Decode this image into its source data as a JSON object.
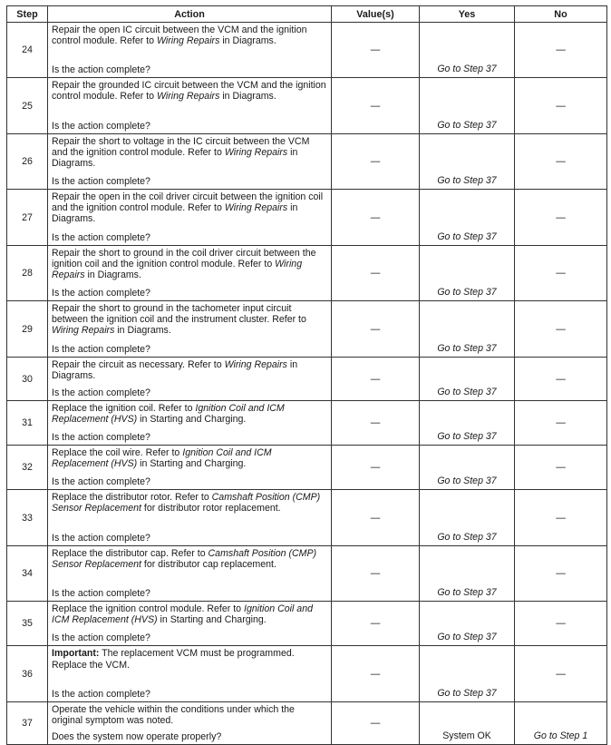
{
  "headers": {
    "step": "Step",
    "action": "Action",
    "values": "Value(s)",
    "yes": "Yes",
    "no": "No"
  },
  "rows": [
    {
      "step": "24",
      "main": [
        [
          {
            "t": "Repair the open IC circuit between the VCM and the ignition control module. Refer to "
          },
          {
            "t": "Wiring Repairs",
            "s": "i"
          },
          {
            "t": " in Diagrams."
          }
        ]
      ],
      "question": "Is the action complete?",
      "value": "—",
      "yes": "Go to Step 37",
      "yes_italic": true,
      "no": "—"
    },
    {
      "step": "25",
      "main": [
        [
          {
            "t": "Repair the grounded IC circuit between the VCM and the ignition control module. Refer to "
          },
          {
            "t": "Wiring Repairs",
            "s": "i"
          },
          {
            "t": " in Diagrams."
          }
        ]
      ],
      "question": "Is the action complete?",
      "value": "—",
      "yes": "Go to Step 37",
      "yes_italic": true,
      "no": "—"
    },
    {
      "step": "26",
      "main": [
        [
          {
            "t": "Repair the short to voltage in the IC circuit between the VCM and the ignition control module. Refer to "
          },
          {
            "t": "Wiring Repairs",
            "s": "i"
          },
          {
            "t": " in Diagrams."
          }
        ]
      ],
      "question": "Is the action complete?",
      "value": "—",
      "yes": "Go to Step 37",
      "yes_italic": true,
      "no": "—"
    },
    {
      "step": "27",
      "main": [
        [
          {
            "t": "Repair the open in the coil driver circuit between the ignition coil and the ignition control module. Refer to "
          },
          {
            "t": "Wiring Repairs",
            "s": "i"
          },
          {
            "t": " in Diagrams."
          }
        ]
      ],
      "question": "Is the action complete?",
      "value": "—",
      "yes": "Go to Step 37",
      "yes_italic": true,
      "no": "—"
    },
    {
      "step": "28",
      "main": [
        [
          {
            "t": "Repair the short to ground in the coil driver circuit between the ignition coil and the ignition control module. Refer to "
          },
          {
            "t": "Wiring Repairs",
            "s": "i"
          },
          {
            "t": " in Diagrams."
          }
        ]
      ],
      "question": "Is the action complete?",
      "value": "—",
      "yes": "Go to Step 37",
      "yes_italic": true,
      "no": "—"
    },
    {
      "step": "29",
      "main": [
        [
          {
            "t": "Repair the short to ground in the tachometer input circuit between the ignition coil and the instrument cluster. Refer to "
          },
          {
            "t": "Wiring Repairs",
            "s": "i"
          },
          {
            "t": " in Diagrams."
          }
        ]
      ],
      "question": "Is the action complete?",
      "value": "—",
      "yes": "Go to Step 37",
      "yes_italic": true,
      "no": "—"
    },
    {
      "step": "30",
      "main": [
        [
          {
            "t": "Repair the circuit as necessary. Refer to "
          },
          {
            "t": "Wiring Repairs",
            "s": "i"
          },
          {
            "t": " in Diagrams."
          }
        ]
      ],
      "question": "Is the action complete?",
      "value": "—",
      "yes": "Go to Step 37",
      "yes_italic": true,
      "no": "—"
    },
    {
      "step": "31",
      "main": [
        [
          {
            "t": "Replace the ignition coil. Refer to "
          },
          {
            "t": "Ignition Coil and ICM Replacement (HVS)",
            "s": "i"
          },
          {
            "t": " in Starting and Charging."
          }
        ]
      ],
      "question": "Is the action complete?",
      "value": "—",
      "yes": "Go to Step 37",
      "yes_italic": true,
      "no": "—"
    },
    {
      "step": "32",
      "main": [
        [
          {
            "t": "Replace the coil wire. Refer to "
          },
          {
            "t": "Ignition Coil and ICM Replacement (HVS)",
            "s": "i"
          },
          {
            "t": " in Starting and Charging."
          }
        ]
      ],
      "question": "Is the action complete?",
      "value": "—",
      "yes": "Go to Step 37",
      "yes_italic": true,
      "no": "—"
    },
    {
      "step": "33",
      "main": [
        [
          {
            "t": "Replace the distributor rotor. Refer to "
          },
          {
            "t": "Camshaft Position (CMP) Sensor Replacement",
            "s": "i"
          },
          {
            "t": " for distributor rotor replacement."
          }
        ]
      ],
      "question": "Is the action complete?",
      "value": "—",
      "yes": "Go to Step 37",
      "yes_italic": true,
      "no": "—"
    },
    {
      "step": "34",
      "main": [
        [
          {
            "t": "Replace the distributor cap. Refer to "
          },
          {
            "t": "Camshaft Position (CMP) Sensor Replacement",
            "s": "i"
          },
          {
            "t": " for distributor cap replacement."
          }
        ]
      ],
      "question": "Is the action complete?",
      "value": "—",
      "yes": "Go to Step 37",
      "yes_italic": true,
      "no": "—"
    },
    {
      "step": "35",
      "main": [
        [
          {
            "t": "Replace the ignition control module. Refer to "
          },
          {
            "t": "Ignition Coil and ICM Replacement (HVS)",
            "s": "i"
          },
          {
            "t": " in Starting and Charging."
          }
        ]
      ],
      "question": "Is the action complete?",
      "value": "—",
      "yes": "Go to Step 37",
      "yes_italic": true,
      "no": "—"
    },
    {
      "step": "36",
      "main": [
        [
          {
            "t": "Important:",
            "s": "b"
          },
          {
            "t": " The replacement VCM must be programmed."
          }
        ],
        [
          {
            "t": "Replace the VCM."
          }
        ]
      ],
      "question": "Is the action complete?",
      "value": "—",
      "yes": "Go to Step 37",
      "yes_italic": true,
      "no": "—"
    },
    {
      "step": "37",
      "main": [
        [
          {
            "t": "Operate the vehicle within the conditions under which the original symptom was noted."
          }
        ]
      ],
      "question": "Does the system now operate properly?",
      "value": "—",
      "yes": "System OK",
      "yes_italic": false,
      "no": "Go to Step 1",
      "no_italic": true
    }
  ]
}
